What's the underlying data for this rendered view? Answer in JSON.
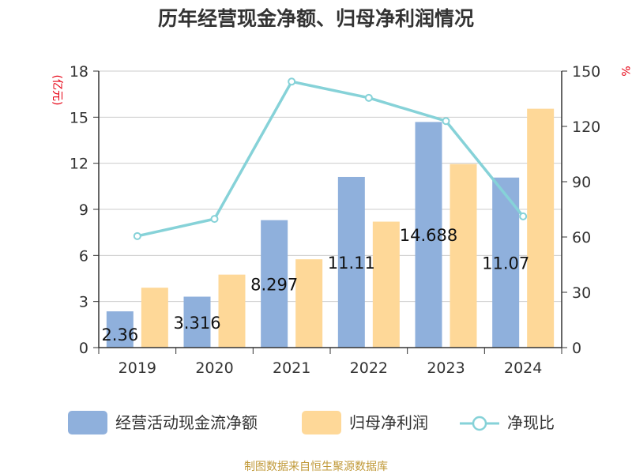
{
  "colors": {
    "bar_cash": "#8fb0dc",
    "bar_profit": "#fed898",
    "line_ratio": "#86d2d8",
    "unit_text": "#e60012",
    "source_text": "#c19a3a",
    "grid": "#cccccc",
    "axis": "#333333"
  },
  "source_note": "制图数据来自恒生聚源数据库",
  "chart_data": {
    "type": "bar",
    "title": "历年经营现金净额、归母净利润情况",
    "left_unit": "(亿元)",
    "right_unit": "%",
    "categories": [
      "2019",
      "2020",
      "2021",
      "2022",
      "2023",
      "2024"
    ],
    "left_ticks": [
      "0",
      "3",
      "6",
      "9",
      "12",
      "15",
      "18"
    ],
    "right_ticks": [
      "0",
      "30",
      "60",
      "90",
      "120",
      "150"
    ],
    "ylim_left": [
      0,
      18
    ],
    "ylim_right": [
      0,
      150
    ],
    "grid": true,
    "legend_position": "bottom",
    "series": [
      {
        "name": "经营活动现金流净额",
        "kind": "bar",
        "axis": "left",
        "values": [
          2.36,
          3.316,
          8.297,
          11.11,
          14.688,
          11.07
        ],
        "labels": [
          "2.36",
          "3.316",
          "8.297",
          "11.11",
          "14.688",
          "11.07"
        ]
      },
      {
        "name": "归母净利润",
        "kind": "bar",
        "axis": "left",
        "values": [
          3.9,
          4.75,
          5.75,
          8.2,
          11.95,
          15.55
        ]
      },
      {
        "name": "净现比",
        "kind": "line",
        "axis": "right",
        "values": [
          60.5,
          69.8,
          144.3,
          135.5,
          122.9,
          71.2
        ]
      }
    ]
  }
}
